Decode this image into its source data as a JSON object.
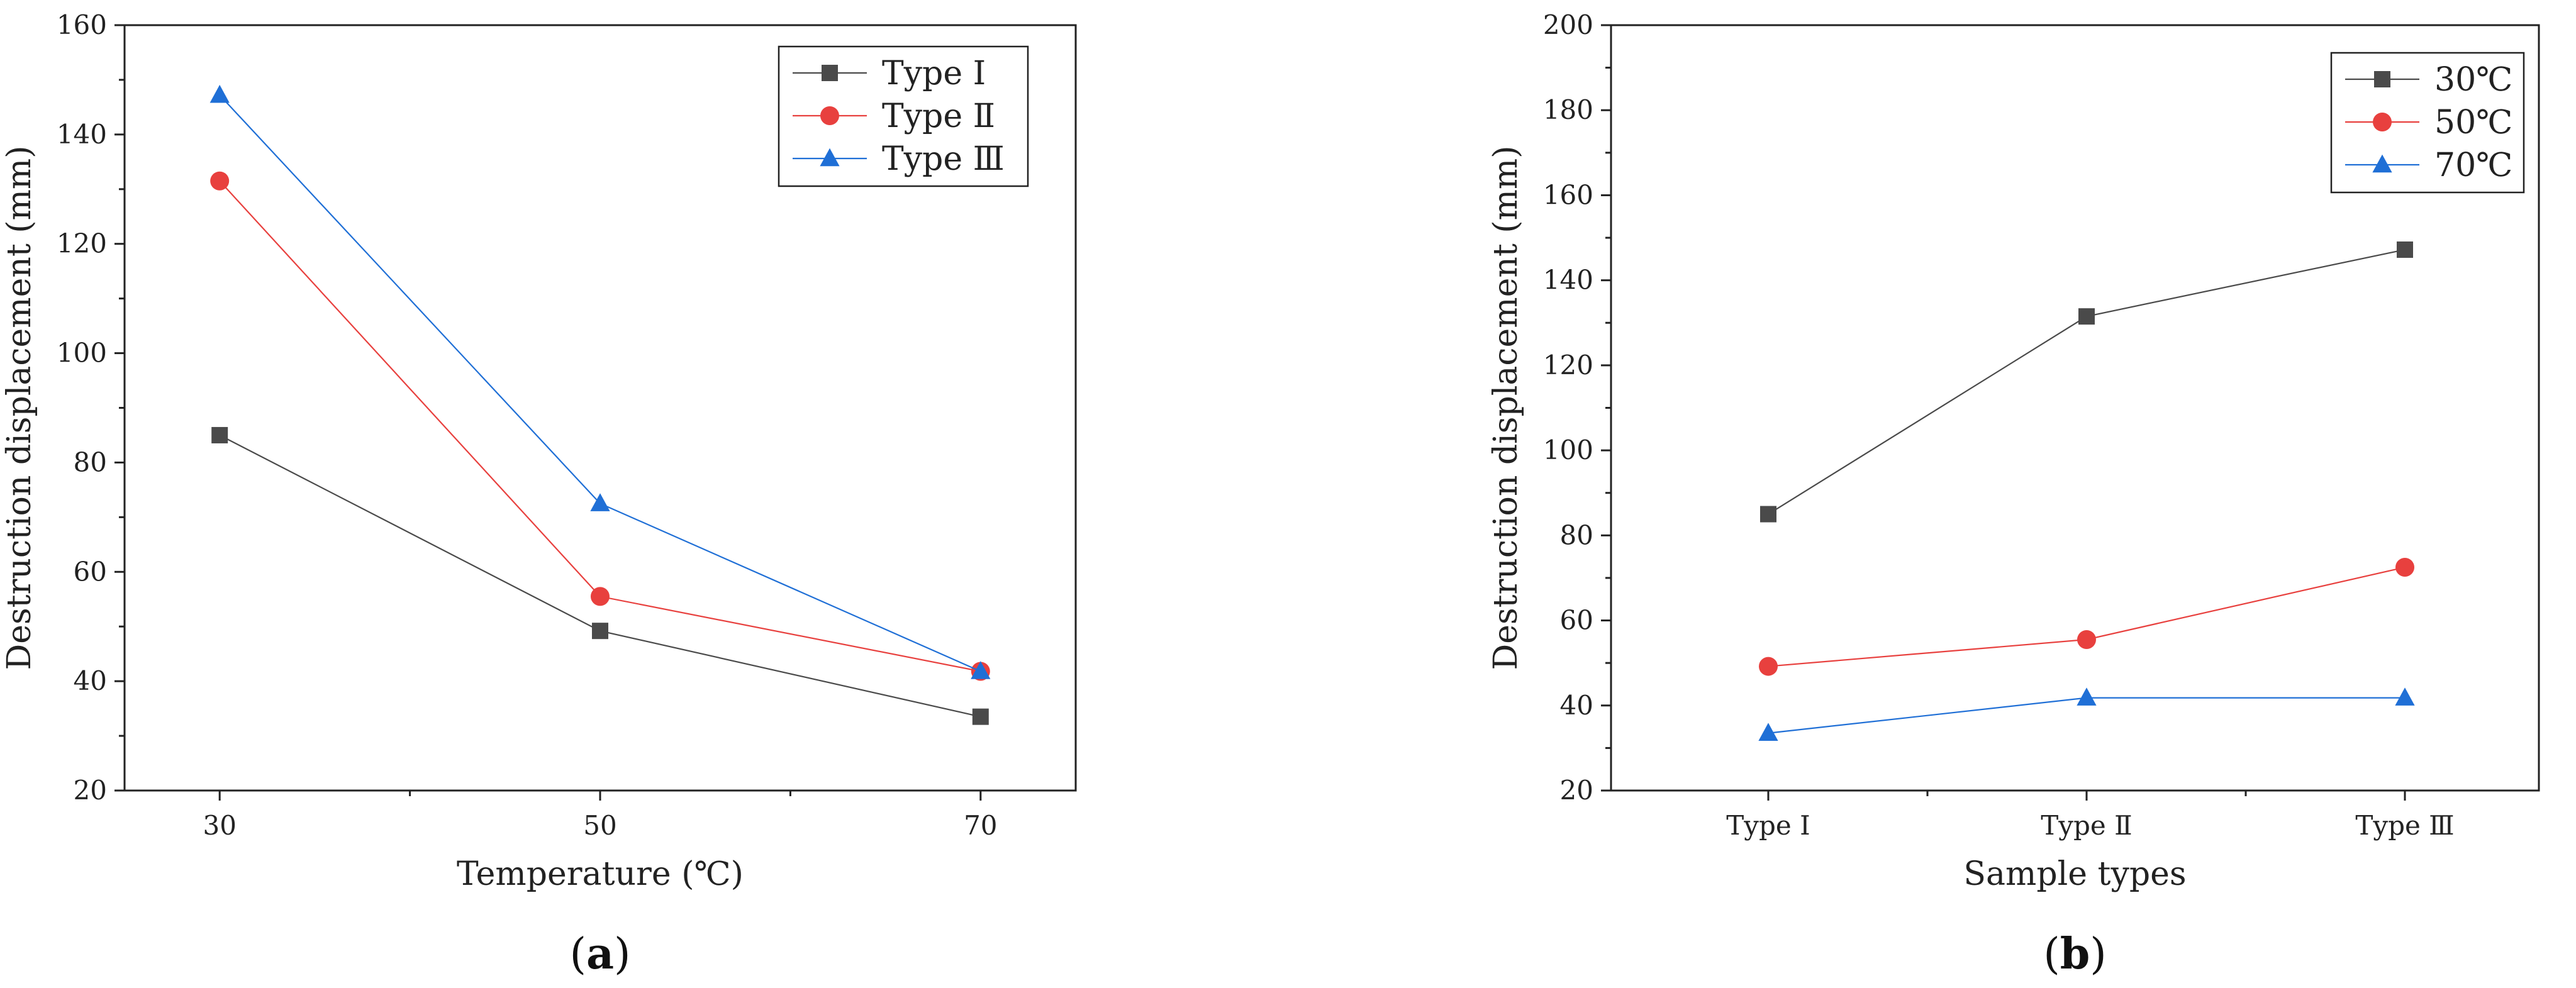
{
  "chart_data": [
    {
      "type": "line",
      "panel_label": "(a)",
      "xlabel": "Temperature (℃)",
      "ylabel": "Destruction displacement (mm)",
      "x": [
        30,
        50,
        70
      ],
      "x_tick_labels": [
        "30",
        "50",
        "70"
      ],
      "xlim": [
        25,
        75
      ],
      "ylim": [
        20,
        160
      ],
      "y_ticks": [
        20,
        40,
        60,
        80,
        100,
        120,
        140,
        160
      ],
      "legend_position": "top-right",
      "grid": false,
      "series": [
        {
          "name": "Type Ⅰ",
          "values": [
            85,
            49.2,
            33.5
          ],
          "color": "#4a4a4a",
          "marker": "square"
        },
        {
          "name": "Type Ⅱ",
          "values": [
            131.5,
            55.5,
            41.8
          ],
          "color": "#e8403e",
          "marker": "circle"
        },
        {
          "name": "Type Ⅲ",
          "values": [
            147.2,
            72.5,
            41.8
          ],
          "color": "#1f6fd6",
          "marker": "triangle"
        }
      ]
    },
    {
      "type": "line",
      "panel_label": "(b)",
      "xlabel": "Sample types",
      "ylabel": "Destruction displacement (mm)",
      "categories": [
        "Type Ⅰ",
        "Type Ⅱ",
        "Type Ⅲ"
      ],
      "ylim": [
        20,
        200
      ],
      "y_ticks": [
        20,
        40,
        60,
        80,
        100,
        120,
        140,
        160,
        180,
        200
      ],
      "legend_position": "top-right",
      "grid": false,
      "series": [
        {
          "name": "30℃",
          "values": [
            85,
            131.5,
            147.2
          ],
          "color": "#4a4a4a",
          "marker": "square"
        },
        {
          "name": "50℃",
          "values": [
            49.2,
            55.5,
            72.5
          ],
          "color": "#e8403e",
          "marker": "circle"
        },
        {
          "name": "70℃",
          "values": [
            33.5,
            41.8,
            41.8
          ],
          "color": "#1f6fd6",
          "marker": "triangle"
        }
      ]
    }
  ]
}
